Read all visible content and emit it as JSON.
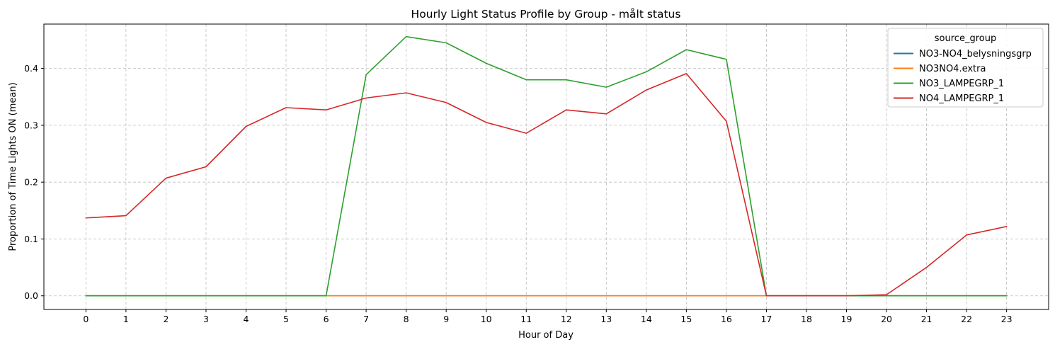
{
  "chart_data": {
    "type": "line",
    "title": "Hourly Light Status Profile by Group - målt status",
    "xlabel": "Hour of Day",
    "ylabel": "Proportion of Time Lights ON (mean)",
    "x": [
      0,
      1,
      2,
      3,
      4,
      5,
      6,
      7,
      8,
      9,
      10,
      11,
      12,
      13,
      14,
      15,
      16,
      17,
      18,
      19,
      20,
      21,
      22,
      23
    ],
    "x_tick_labels": [
      "0",
      "1",
      "2",
      "3",
      "4",
      "5",
      "6",
      "7",
      "8",
      "9",
      "10",
      "11",
      "12",
      "13",
      "14",
      "15",
      "16",
      "17",
      "18",
      "19",
      "20",
      "21",
      "22",
      "23"
    ],
    "xlim": [
      -1.05,
      24.05
    ],
    "ylim": [
      -0.024,
      0.478
    ],
    "y_ticks": [
      0.0,
      0.1,
      0.2,
      0.3,
      0.4
    ],
    "y_tick_labels": [
      "0.0",
      "0.1",
      "0.2",
      "0.3",
      "0.4"
    ],
    "grid": true,
    "legend": {
      "title": "source_group",
      "placement": "top-right"
    },
    "series": [
      {
        "name": "NO3-NO4_belysningsgrp",
        "color": "#1f77b4",
        "values": [
          0,
          0,
          0,
          0,
          0,
          0,
          0,
          0,
          0,
          0,
          0,
          0,
          0,
          0,
          0,
          0,
          0,
          0,
          0,
          0,
          0,
          0,
          0,
          0
        ]
      },
      {
        "name": "NO3NO4.extra",
        "color": "#ff7f0e",
        "values": [
          0,
          0,
          0,
          0,
          0,
          0,
          0,
          0,
          0,
          0,
          0,
          0,
          0,
          0,
          0,
          0,
          0,
          0,
          0,
          0,
          0,
          0,
          0,
          0
        ]
      },
      {
        "name": "NO3_LAMPEGRP_1",
        "color": "#2ca02c",
        "values": [
          0,
          0,
          0,
          0,
          0,
          0,
          0,
          0.389,
          0.456,
          0.445,
          0.409,
          0.38,
          0.38,
          0.367,
          0.394,
          0.433,
          0.416,
          0,
          0,
          0,
          0,
          0,
          0,
          0
        ]
      },
      {
        "name": "NO4_LAMPEGRP_1",
        "color": "#d62728",
        "values": [
          0.137,
          0.141,
          0.207,
          0.227,
          0.298,
          0.331,
          0.327,
          0.348,
          0.357,
          0.34,
          0.305,
          0.286,
          0.327,
          0.32,
          0.362,
          0.391,
          0.307,
          0,
          0,
          0,
          0.002,
          0.05,
          0.107,
          0.122
        ]
      }
    ]
  }
}
